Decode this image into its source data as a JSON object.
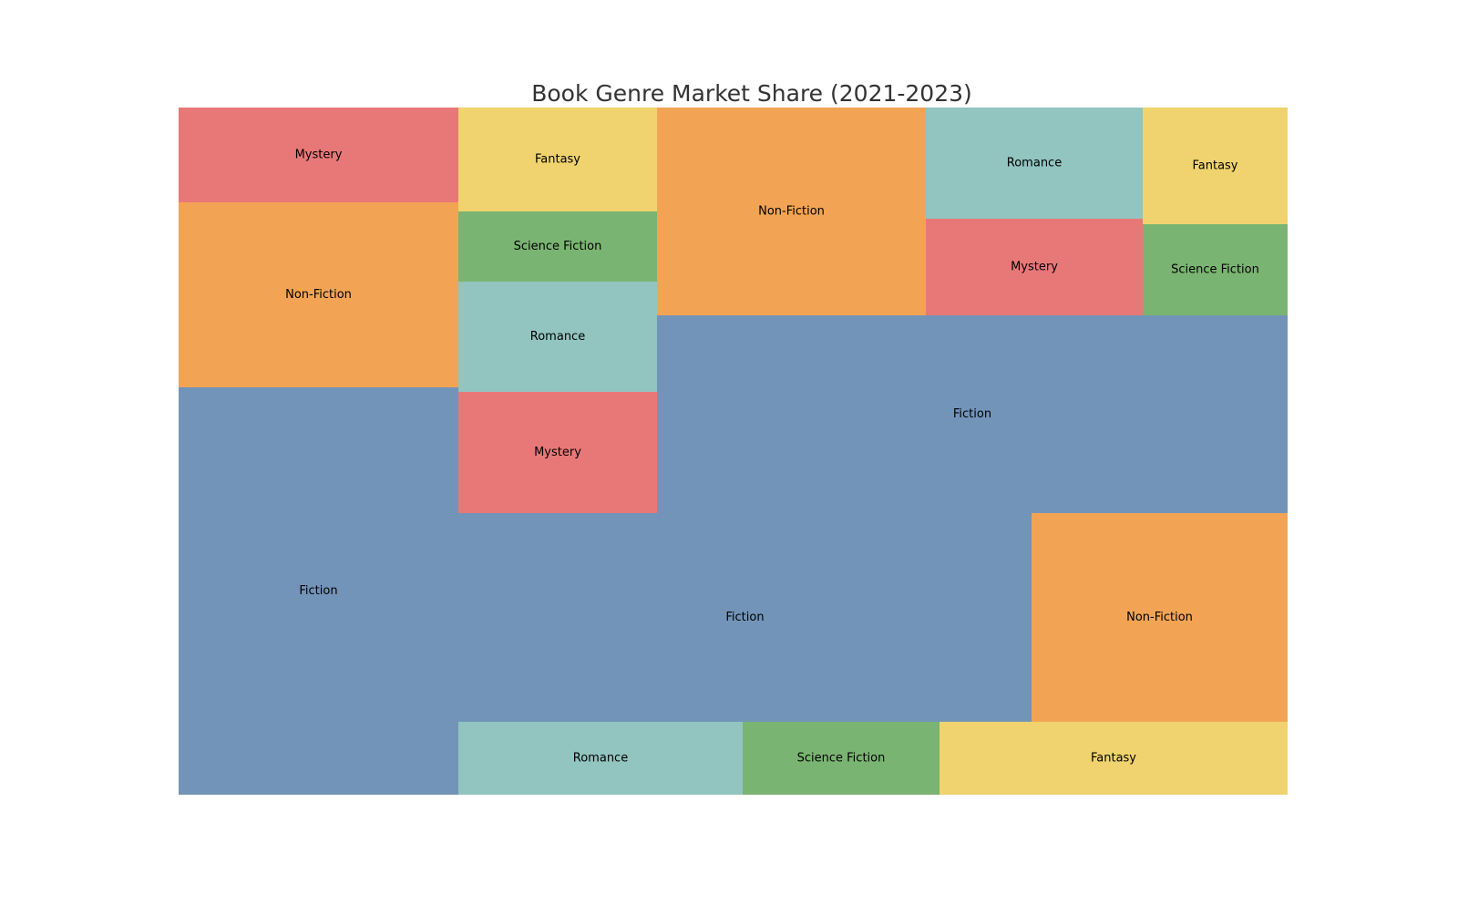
{
  "chart_data": {
    "type": "treemap",
    "title": "Book Genre Market Share (2021-2023)",
    "colors": {
      "Fiction": "#7294b9",
      "Non-Fiction": "#f2a454",
      "Mystery": "#e87878",
      "Romance": "#92c4c0",
      "Science Fiction": "#7ab472",
      "Fantasy": "#f0d36e"
    },
    "tiles": [
      {
        "label": "Fiction",
        "value": 27.7
      },
      {
        "label": "Non-Fiction",
        "value": 12.5
      },
      {
        "label": "Mystery",
        "value": 6.5
      },
      {
        "label": "Mystery",
        "value": 6.5
      },
      {
        "label": "Romance",
        "value": 6.5
      },
      {
        "label": "Science Fiction",
        "value": 4.2
      },
      {
        "label": "Fantasy",
        "value": 6.3
      },
      {
        "label": "Fiction",
        "value": 33.1
      },
      {
        "label": "Romance",
        "value": 5.6
      },
      {
        "label": "Science Fiction",
        "value": 3.9
      },
      {
        "label": "Fantasy",
        "value": 6.9
      },
      {
        "label": "Fiction",
        "value": 20.6
      },
      {
        "label": "Non-Fiction",
        "value": 15.1
      },
      {
        "label": "Mystery",
        "value": 5.5
      },
      {
        "label": "Romance",
        "value": 6.5
      },
      {
        "label": "Science Fiction",
        "value": 3.5
      },
      {
        "label": "Fantasy",
        "value": 4.5
      },
      {
        "label": "Non-Fiction",
        "value": 14.4
      }
    ]
  }
}
